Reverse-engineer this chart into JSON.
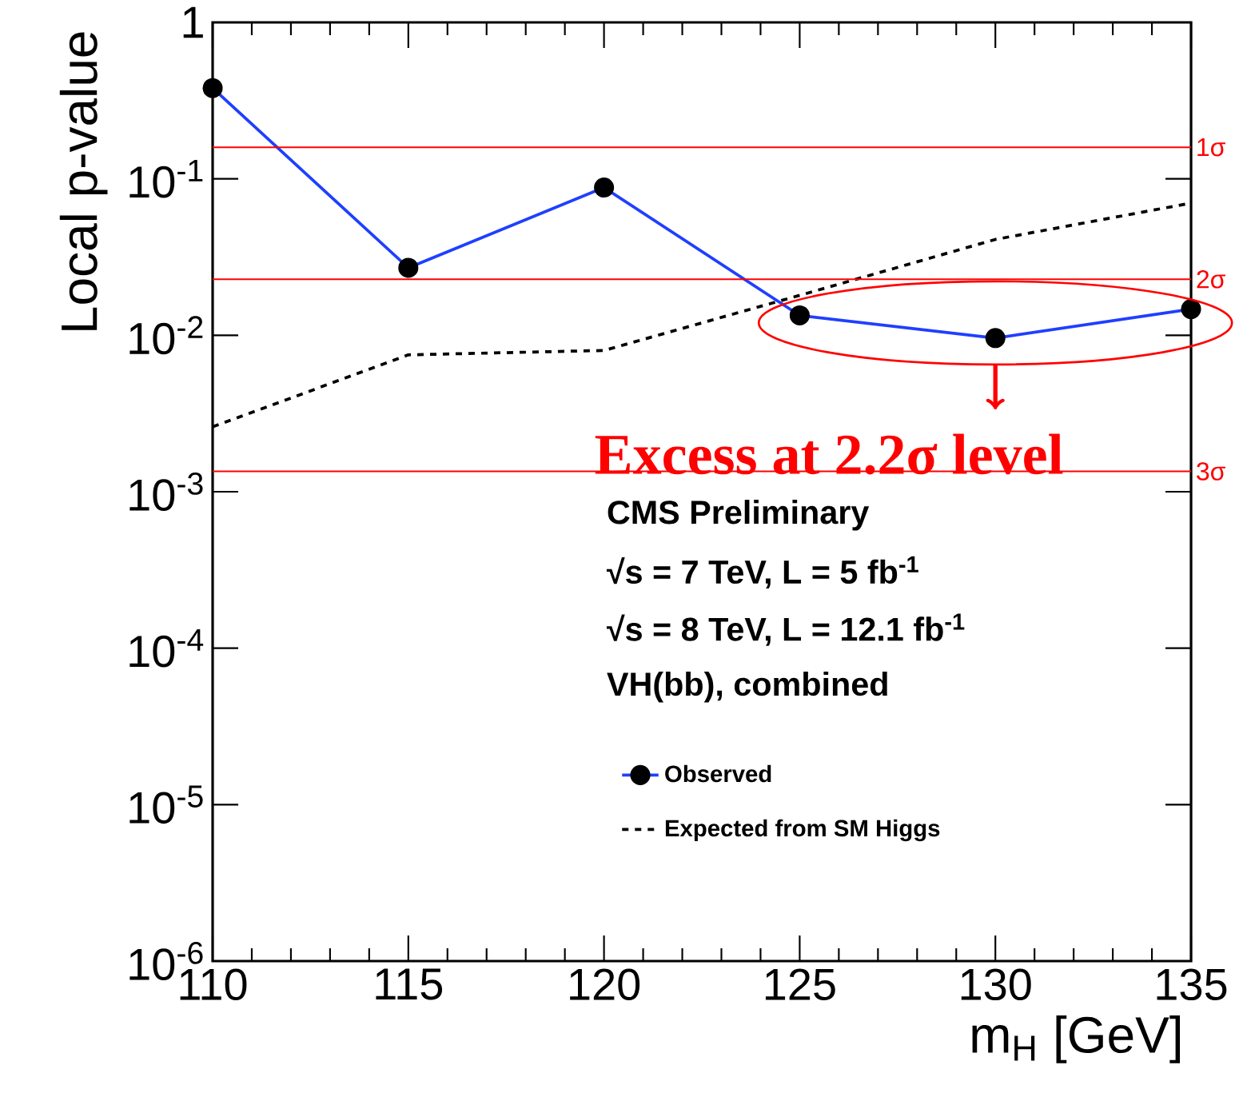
{
  "chart_data": {
    "type": "line",
    "xlabel": "m$_{H}$ [GeV]",
    "ylabel": "Local p-value",
    "x": [
      110,
      115,
      120,
      125,
      130,
      135
    ],
    "series": [
      {
        "name": "Observed",
        "color": "#1f3fff",
        "values": [
          0.38,
          0.027,
          0.088,
          0.0134,
          0.0096,
          0.0147
        ],
        "marker": "circle",
        "line_style": "solid"
      },
      {
        "name": "Expected from SM Higgs",
        "color": "#000000",
        "values": [
          0.0026,
          0.0075,
          0.008,
          0.018,
          0.041,
          0.07
        ],
        "marker": "none",
        "line_style": "dashed"
      }
    ],
    "log": "y",
    "xlim": [
      110,
      135
    ],
    "ylim": [
      1e-06,
      1
    ],
    "xticks": [
      110,
      115,
      120,
      125,
      130,
      135
    ],
    "yticks": [
      {
        "value": 1e-06,
        "label": "10$^{-6}$"
      },
      {
        "value": 1e-05,
        "label": "10$^{-5}$"
      },
      {
        "value": 0.0001,
        "label": "10$^{-4}$"
      },
      {
        "value": 0.001,
        "label": "10$^{-3}$"
      },
      {
        "value": 0.01,
        "label": "10$^{-2}$"
      },
      {
        "value": 0.1,
        "label": "10$^{-1}$"
      },
      1
    ],
    "ref_lines": [
      {
        "axis": "y",
        "value": 0.159,
        "label": "1σ",
        "color": "#ff0000"
      },
      {
        "axis": "y",
        "value": 0.0228,
        "label": "2σ",
        "color": "#ff0000"
      },
      {
        "axis": "y",
        "value": 0.00135,
        "label": "3σ",
        "color": "#ff0000"
      }
    ],
    "annotations": [
      "Excess at 2.2σ level",
      "CMS Preliminary",
      "√s = 7 TeV, L = 5 fb$^{-1}$",
      "√s = 8 TeV, L = 12.1 fb$^{-1}$",
      "VH(bb), combined"
    ],
    "legend": "bottom right"
  }
}
